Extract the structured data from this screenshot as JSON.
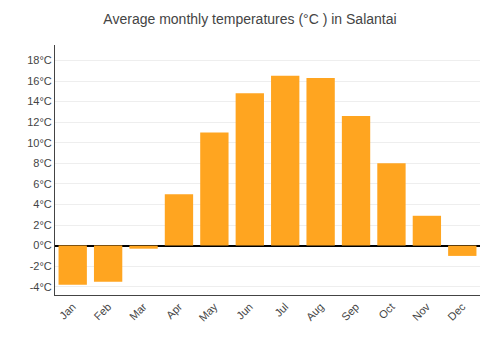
{
  "chart_data": {
    "type": "bar",
    "title": "Average monthly temperatures (°C ) in Salantai",
    "categories": [
      "Jan",
      "Feb",
      "Mar",
      "Apr",
      "May",
      "Jun",
      "Jul",
      "Aug",
      "Sep",
      "Oct",
      "Nov",
      "Dec"
    ],
    "values": [
      -3.8,
      -3.5,
      -0.3,
      5.0,
      11.0,
      14.8,
      16.5,
      16.3,
      12.6,
      8.0,
      2.9,
      -1.0
    ],
    "color": "#FFA520",
    "ylim": [
      -4.8,
      19.5
    ],
    "yticks": [
      {
        "value": -4,
        "label": "-4°C"
      },
      {
        "value": -2,
        "label": "-2°C"
      },
      {
        "value": 0,
        "label": "0°C"
      },
      {
        "value": 2,
        "label": "2°C"
      },
      {
        "value": 4,
        "label": "4°C"
      },
      {
        "value": 6,
        "label": "6°C"
      },
      {
        "value": 8,
        "label": "8°C"
      },
      {
        "value": 10,
        "label": "10°C"
      },
      {
        "value": 12,
        "label": "12°C"
      },
      {
        "value": 14,
        "label": "14°C"
      },
      {
        "value": 16,
        "label": "16°C"
      },
      {
        "value": 18,
        "label": "18°C"
      }
    ],
    "grid": true
  }
}
